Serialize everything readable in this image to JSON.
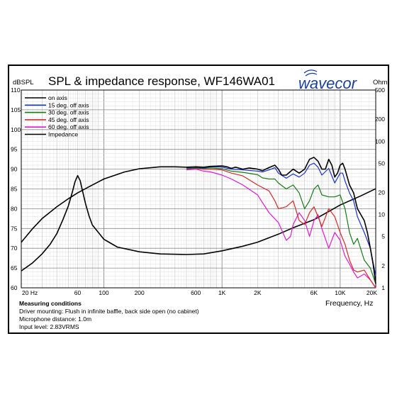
{
  "chart_data": {
    "type": "line",
    "title": "SPL & impedance response, WF146WA01",
    "brand": "wavecor",
    "brand_color": "#1a3fa0",
    "left_unit": "dBSPL",
    "right_unit": "Ohm",
    "xlabel": "Frequency, Hz",
    "x_scale": "log",
    "xlim": [
      20,
      20000
    ],
    "ylim_left": [
      60,
      110
    ],
    "ylim_right_log": [
      1,
      500
    ],
    "x_tick_labels": [
      {
        "value": 20,
        "label": "20 Hz"
      },
      {
        "value": 60,
        "label": "60"
      },
      {
        "value": 100,
        "label": "100"
      },
      {
        "value": 200,
        "label": "200"
      },
      {
        "value": 600,
        "label": "600"
      },
      {
        "value": 1000,
        "label": "1K"
      },
      {
        "value": 2000,
        "label": "2K"
      },
      {
        "value": 6000,
        "label": "6K"
      },
      {
        "value": 10000,
        "label": "10K"
      },
      {
        "value": 20000,
        "label": "20K"
      }
    ],
    "y_left_ticks": [
      "110",
      "105",
      "100",
      "95",
      "90",
      "85",
      "80",
      "75",
      "70",
      "65",
      "60"
    ],
    "y_right_ticks": [
      {
        "value": 500,
        "label": "500"
      },
      {
        "value": 200,
        "label": "200"
      },
      {
        "value": 100,
        "label": "100"
      },
      {
        "value": 50,
        "label": "50"
      },
      {
        "value": 20,
        "label": "20"
      },
      {
        "value": 10,
        "label": "10"
      },
      {
        "value": 5,
        "label": "5"
      },
      {
        "value": 2,
        "label": "2"
      },
      {
        "value": 1,
        "label": "1"
      }
    ],
    "grid": true,
    "legend_position": "top-left",
    "series": [
      {
        "name": "on axis",
        "color": "#000000",
        "axis": "left",
        "points": [
          [
            20,
            71.5
          ],
          [
            25,
            75
          ],
          [
            30,
            77.5
          ],
          [
            40,
            80.5
          ],
          [
            50,
            82.5
          ],
          [
            60,
            84
          ],
          [
            80,
            86
          ],
          [
            100,
            87.5
          ],
          [
            150,
            89.3
          ],
          [
            200,
            90.1
          ],
          [
            300,
            90.6
          ],
          [
            400,
            90.6
          ],
          [
            500,
            90.5
          ],
          [
            600,
            90.6
          ],
          [
            700,
            90.5
          ],
          [
            800,
            90.7
          ],
          [
            1000,
            90.8
          ],
          [
            1100,
            90.6
          ],
          [
            1200,
            90.2
          ],
          [
            1300,
            90.5
          ],
          [
            1500,
            90
          ],
          [
            1700,
            90.3
          ],
          [
            2000,
            90
          ],
          [
            2200,
            89.6
          ],
          [
            2500,
            90.4
          ],
          [
            2800,
            91
          ],
          [
            3000,
            90
          ],
          [
            3200,
            88.5
          ],
          [
            3500,
            88.5
          ],
          [
            4000,
            90
          ],
          [
            4500,
            89
          ],
          [
            5000,
            90
          ],
          [
            5500,
            92.5
          ],
          [
            6000,
            93
          ],
          [
            6500,
            92
          ],
          [
            7000,
            90
          ],
          [
            7500,
            90
          ],
          [
            8000,
            92.5
          ],
          [
            8500,
            91
          ],
          [
            9000,
            88
          ],
          [
            9500,
            89
          ],
          [
            10000,
            91
          ],
          [
            10500,
            91.5
          ],
          [
            11000,
            90
          ],
          [
            12000,
            86
          ],
          [
            13000,
            84
          ],
          [
            14000,
            80
          ],
          [
            16000,
            77
          ],
          [
            17000,
            74
          ],
          [
            18000,
            70
          ],
          [
            19000,
            66
          ],
          [
            20000,
            61
          ]
        ]
      },
      {
        "name": "15 deg. off axis",
        "color": "#1a33cc",
        "axis": "left",
        "points": [
          [
            500,
            90.3
          ],
          [
            600,
            90.5
          ],
          [
            700,
            90.3
          ],
          [
            800,
            90.6
          ],
          [
            1000,
            90.5
          ],
          [
            1200,
            90
          ],
          [
            1500,
            89.8
          ],
          [
            2000,
            89.5
          ],
          [
            2200,
            89.3
          ],
          [
            2500,
            89.8
          ],
          [
            2800,
            90.4
          ],
          [
            3000,
            89
          ],
          [
            3500,
            87.7
          ],
          [
            4000,
            88.8
          ],
          [
            4500,
            88
          ],
          [
            5000,
            89
          ],
          [
            5500,
            91
          ],
          [
            6000,
            91.5
          ],
          [
            6500,
            90.5
          ],
          [
            7000,
            88.5
          ],
          [
            8000,
            90.2
          ],
          [
            9000,
            86.5
          ],
          [
            10000,
            89
          ],
          [
            10500,
            89
          ],
          [
            11000,
            87
          ],
          [
            12000,
            84
          ],
          [
            13000,
            82
          ],
          [
            14000,
            78
          ],
          [
            16000,
            74
          ],
          [
            18000,
            70
          ],
          [
            20000,
            63
          ]
        ]
      },
      {
        "name": "30 deg. off axis",
        "color": "#177a17",
        "axis": "left",
        "points": [
          [
            500,
            90.1
          ],
          [
            600,
            90.3
          ],
          [
            700,
            90.2
          ],
          [
            800,
            90.3
          ],
          [
            1000,
            90.1
          ],
          [
            1200,
            89.5
          ],
          [
            1500,
            89.2
          ],
          [
            2000,
            88.6
          ],
          [
            2200,
            87.8
          ],
          [
            2500,
            87.5
          ],
          [
            2800,
            87.5
          ],
          [
            3000,
            86.5
          ],
          [
            3500,
            85
          ],
          [
            4000,
            86
          ],
          [
            4500,
            84
          ],
          [
            5000,
            80
          ],
          [
            5500,
            82
          ],
          [
            6000,
            85
          ],
          [
            6500,
            86
          ],
          [
            7000,
            83.5
          ],
          [
            8000,
            83
          ],
          [
            9000,
            83
          ],
          [
            10000,
            83.5
          ],
          [
            11000,
            80
          ],
          [
            12000,
            74
          ],
          [
            13000,
            71
          ],
          [
            14000,
            72.5
          ],
          [
            16000,
            67
          ],
          [
            18000,
            65
          ],
          [
            20000,
            61
          ]
        ]
      },
      {
        "name": "45 deg. off axis",
        "color": "#d42a2a",
        "axis": "left",
        "points": [
          [
            500,
            90
          ],
          [
            600,
            90.2
          ],
          [
            700,
            90
          ],
          [
            800,
            90
          ],
          [
            1000,
            89.8
          ],
          [
            1200,
            89
          ],
          [
            1500,
            88.3
          ],
          [
            2000,
            86
          ],
          [
            2500,
            84.5
          ],
          [
            2800,
            82
          ],
          [
            3000,
            80
          ],
          [
            3500,
            80.5
          ],
          [
            4000,
            82
          ],
          [
            4500,
            77
          ],
          [
            5000,
            76
          ],
          [
            5500,
            79
          ],
          [
            6000,
            80.5
          ],
          [
            6500,
            78
          ],
          [
            7000,
            75.5
          ],
          [
            8000,
            80
          ],
          [
            9000,
            78
          ],
          [
            10000,
            74
          ],
          [
            11000,
            71
          ],
          [
            12000,
            67
          ],
          [
            13000,
            64.5
          ],
          [
            14000,
            64
          ],
          [
            16000,
            64.5
          ],
          [
            18000,
            62
          ],
          [
            20000,
            60
          ]
        ]
      },
      {
        "name": "60 deg. off axis",
        "color": "#e01ad4",
        "axis": "left",
        "points": [
          [
            500,
            89.8
          ],
          [
            600,
            90
          ],
          [
            700,
            89.5
          ],
          [
            800,
            89.3
          ],
          [
            1000,
            88.5
          ],
          [
            1200,
            87.5
          ],
          [
            1500,
            86
          ],
          [
            2000,
            83.5
          ],
          [
            2500,
            79
          ],
          [
            3000,
            76.5
          ],
          [
            3500,
            72
          ],
          [
            3800,
            73
          ],
          [
            4000,
            76
          ],
          [
            4500,
            79
          ],
          [
            5000,
            77
          ],
          [
            5500,
            73
          ],
          [
            6000,
            77
          ],
          [
            6500,
            78.5
          ],
          [
            7000,
            75
          ],
          [
            8000,
            70
          ],
          [
            9000,
            74
          ],
          [
            10000,
            72
          ],
          [
            11000,
            68
          ],
          [
            12000,
            66
          ],
          [
            13000,
            64
          ],
          [
            14000,
            62.5
          ],
          [
            16000,
            63.5
          ],
          [
            18000,
            62
          ],
          [
            20000,
            60
          ]
        ]
      },
      {
        "name": "Impedance",
        "color": "#000000",
        "axis": "right",
        "points": [
          [
            20,
            1.7
          ],
          [
            25,
            2.2
          ],
          [
            30,
            2.9
          ],
          [
            35,
            3.9
          ],
          [
            40,
            5.5
          ],
          [
            45,
            8.5
          ],
          [
            50,
            13
          ],
          [
            54,
            20
          ],
          [
            57,
            28
          ],
          [
            60,
            34
          ],
          [
            63,
            29
          ],
          [
            66,
            21
          ],
          [
            70,
            14
          ],
          [
            75,
            9.5
          ],
          [
            80,
            7.2
          ],
          [
            100,
            4.6
          ],
          [
            130,
            3.6
          ],
          [
            200,
            3.1
          ],
          [
            300,
            2.9
          ],
          [
            500,
            2.85
          ],
          [
            700,
            2.9
          ],
          [
            1000,
            3.2
          ],
          [
            1500,
            3.7
          ],
          [
            2000,
            4.2
          ],
          [
            3000,
            5.4
          ],
          [
            4000,
            6.6
          ],
          [
            6000,
            8.5
          ],
          [
            8000,
            11
          ],
          [
            10000,
            13.5
          ],
          [
            15000,
            18
          ],
          [
            20000,
            22.5
          ]
        ]
      }
    ]
  },
  "notes": {
    "heading": "Measuring conditions",
    "lines": [
      "Driver mounting: Flush in infinite baffle, back side open (no cabinet)",
      "Microphone distance: 1.0m",
      "Input level: 2.83VRMS"
    ]
  }
}
